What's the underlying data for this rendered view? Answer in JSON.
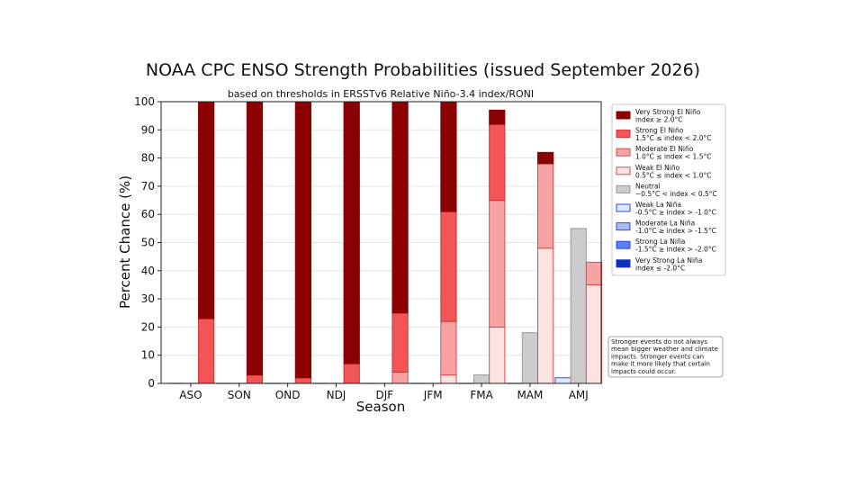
{
  "chart_data": {
    "type": "bar",
    "title": "NOAA CPC ENSO Strength Probabilities (issued September 2026)",
    "subtitle": "based on thresholds in ERSSTv6 Relative Niño-3.4 index/RONI",
    "xlabel": "Season",
    "ylabel": "Percent Chance (%)",
    "ylim": [
      0,
      100
    ],
    "yticks": [
      0,
      10,
      20,
      30,
      40,
      50,
      60,
      70,
      80,
      90,
      100
    ],
    "grid": "horizontal",
    "legend_position": "right",
    "categories": [
      "ASO",
      "SON",
      "OND",
      "NDJ",
      "DJF",
      "JFM",
      "FMA",
      "MAM",
      "AMJ"
    ],
    "groups": [
      {
        "name": "La Niña",
        "stack": [
          "Weak La Niña",
          "Moderate La Niña",
          "Strong La Niña",
          "Very Strong La Niña"
        ],
        "totals": [
          0,
          0,
          0,
          0,
          0,
          0,
          0,
          0,
          2
        ],
        "segments": {
          "Weak La Niña": [
            0,
            0,
            0,
            0,
            0,
            0,
            0,
            0,
            2
          ],
          "Moderate La Niña": [
            0,
            0,
            0,
            0,
            0,
            0,
            0,
            0,
            0
          ],
          "Strong La Niña": [
            0,
            0,
            0,
            0,
            0,
            0,
            0,
            0,
            0
          ],
          "Very Strong La Niña": [
            0,
            0,
            0,
            0,
            0,
            0,
            0,
            0,
            0
          ]
        }
      },
      {
        "name": "Neutral",
        "stack": [
          "Neutral"
        ],
        "totals": [
          0,
          0,
          0,
          0,
          0,
          0,
          3,
          18,
          55
        ],
        "segments": {
          "Neutral": [
            0,
            0,
            0,
            0,
            0,
            0,
            3,
            18,
            55
          ]
        }
      },
      {
        "name": "El Niño",
        "stack": [
          "Weak El Niño",
          "Moderate El Niño",
          "Strong El Niño",
          "Very Strong El Niño"
        ],
        "totals": [
          100,
          100,
          100,
          100,
          100,
          100,
          97,
          82,
          43
        ],
        "segments": {
          "Weak El Niño": [
            0,
            0,
            0,
            0,
            0,
            3,
            20,
            48,
            35
          ],
          "Moderate El Niño": [
            0,
            0,
            0,
            0,
            4,
            19,
            45,
            30,
            8
          ],
          "Strong El Niño": [
            23,
            3,
            2,
            7,
            21,
            39,
            27,
            0,
            0
          ],
          "Very Strong El Niño": [
            77,
            97,
            98,
            93,
            75,
            39,
            5,
            4,
            0
          ]
        }
      }
    ],
    "legend": [
      {
        "key": "Very Strong El Niño",
        "label": "Very Strong El Niño",
        "range": "index ≥ 2.0°C",
        "fill": "#8b0000",
        "stroke": "#8b0000"
      },
      {
        "key": "Strong El Niño",
        "label": "Strong El Niño",
        "range": "1.5°C ≤ index < 2.0°C",
        "fill": "#f25555",
        "stroke": "#d23030"
      },
      {
        "key": "Moderate El Niño",
        "label": "Moderate El Niño",
        "range": "1.0°C ≤ index < 1.5°C",
        "fill": "#f7a3a3",
        "stroke": "#e04848"
      },
      {
        "key": "Weak El Niño",
        "label": "Weak El Niño",
        "range": "0.5°C ≤ index < 1.0°C",
        "fill": "#fde2e2",
        "stroke": "#e04848"
      },
      {
        "key": "Neutral",
        "label": "Neutral",
        "range": "−0.5°C < index < 0.5°C",
        "fill": "#cccccc",
        "stroke": "#999999"
      },
      {
        "key": "Weak La Niña",
        "label": "Weak La Niña",
        "range": "-0.5°C ≥ index > -1.0°C",
        "fill": "#dfe7ff",
        "stroke": "#2a4fd6"
      },
      {
        "key": "Moderate La Niña",
        "label": "Moderate La Niña",
        "range": "-1.0°C ≥ index > -1.5°C",
        "fill": "#a9bcf7",
        "stroke": "#2a4fd6"
      },
      {
        "key": "Strong La Niña",
        "label": "Strong La Niña",
        "range": "-1.5°C ≥ index > -2.0°C",
        "fill": "#5b7ff0",
        "stroke": "#2a4fd6"
      },
      {
        "key": "Very Strong La Niña",
        "label": "Very Strong La Niña",
        "range": "index ≤ -2.0°C",
        "fill": "#0a2fc2",
        "stroke": "#0a2fc2"
      }
    ],
    "note": [
      "Stronger events do not always",
      "mean bigger weather and climate",
      "impacts. Stronger events can",
      "make it more likely that certain",
      "impacts could occur."
    ]
  }
}
